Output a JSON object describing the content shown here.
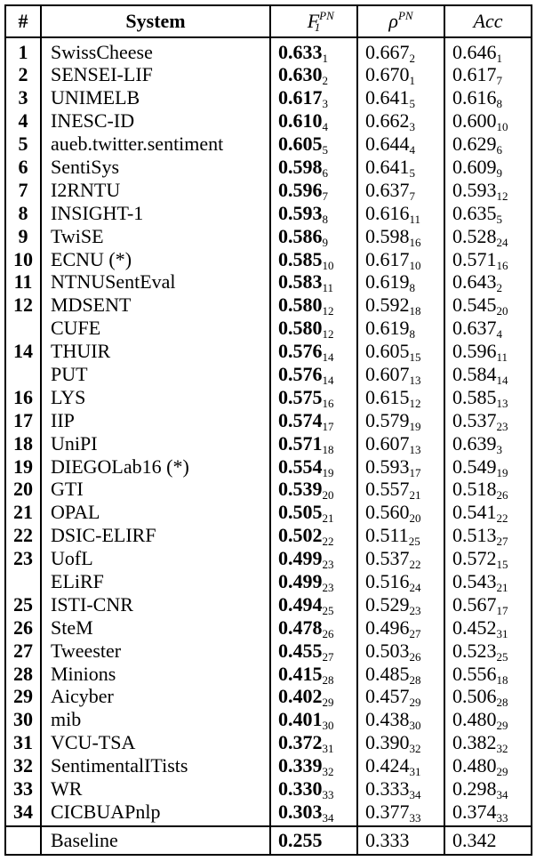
{
  "headers": {
    "rank": "#",
    "system": "System",
    "f1": {
      "base": "F",
      "sup": "PN",
      "sub": "1"
    },
    "rho": {
      "base": "ρ",
      "sup": "PN"
    },
    "acc": {
      "base": "Acc"
    }
  },
  "rows": [
    {
      "rank": "1",
      "system": "SwissCheese",
      "f1": "0.633",
      "f1_r": "1",
      "rho": "0.667",
      "rho_r": "2",
      "acc": "0.646",
      "acc_r": "1"
    },
    {
      "rank": "2",
      "system": "SENSEI-LIF",
      "f1": "0.630",
      "f1_r": "2",
      "rho": "0.670",
      "rho_r": "1",
      "acc": "0.617",
      "acc_r": "7"
    },
    {
      "rank": "3",
      "system": "UNIMELB",
      "f1": "0.617",
      "f1_r": "3",
      "rho": "0.641",
      "rho_r": "5",
      "acc": "0.616",
      "acc_r": "8"
    },
    {
      "rank": "4",
      "system": "INESC-ID",
      "f1": "0.610",
      "f1_r": "4",
      "rho": "0.662",
      "rho_r": "3",
      "acc": "0.600",
      "acc_r": "10"
    },
    {
      "rank": "5",
      "system": "aueb.twitter.sentiment",
      "f1": "0.605",
      "f1_r": "5",
      "rho": "0.644",
      "rho_r": "4",
      "acc": "0.629",
      "acc_r": "6"
    },
    {
      "rank": "6",
      "system": "SentiSys",
      "f1": "0.598",
      "f1_r": "6",
      "rho": "0.641",
      "rho_r": "5",
      "acc": "0.609",
      "acc_r": "9"
    },
    {
      "rank": "7",
      "system": "I2RNTU",
      "f1": "0.596",
      "f1_r": "7",
      "rho": "0.637",
      "rho_r": "7",
      "acc": "0.593",
      "acc_r": "12"
    },
    {
      "rank": "8",
      "system": "INSIGHT-1",
      "f1": "0.593",
      "f1_r": "8",
      "rho": "0.616",
      "rho_r": "11",
      "acc": "0.635",
      "acc_r": "5"
    },
    {
      "rank": "9",
      "system": "TwiSE",
      "f1": "0.586",
      "f1_r": "9",
      "rho": "0.598",
      "rho_r": "16",
      "acc": "0.528",
      "acc_r": "24"
    },
    {
      "rank": "10",
      "system": "ECNU (*)",
      "f1": "0.585",
      "f1_r": "10",
      "rho": "0.617",
      "rho_r": "10",
      "acc": "0.571",
      "acc_r": "16"
    },
    {
      "rank": "11",
      "system": "NTNUSentEval",
      "f1": "0.583",
      "f1_r": "11",
      "rho": "0.619",
      "rho_r": "8",
      "acc": "0.643",
      "acc_r": "2"
    },
    {
      "rank": "12",
      "system": "MDSENT",
      "f1": "0.580",
      "f1_r": "12",
      "rho": "0.592",
      "rho_r": "18",
      "acc": "0.545",
      "acc_r": "20"
    },
    {
      "rank": "",
      "system": "CUFE",
      "f1": "0.580",
      "f1_r": "12",
      "rho": "0.619",
      "rho_r": "8",
      "acc": "0.637",
      "acc_r": "4"
    },
    {
      "rank": "14",
      "system": "THUIR",
      "f1": "0.576",
      "f1_r": "14",
      "rho": "0.605",
      "rho_r": "15",
      "acc": "0.596",
      "acc_r": "11"
    },
    {
      "rank": "",
      "system": "PUT",
      "f1": "0.576",
      "f1_r": "14",
      "rho": "0.607",
      "rho_r": "13",
      "acc": "0.584",
      "acc_r": "14"
    },
    {
      "rank": "16",
      "system": "LYS",
      "f1": "0.575",
      "f1_r": "16",
      "rho": "0.615",
      "rho_r": "12",
      "acc": "0.585",
      "acc_r": "13"
    },
    {
      "rank": "17",
      "system": "IIP",
      "f1": "0.574",
      "f1_r": "17",
      "rho": "0.579",
      "rho_r": "19",
      "acc": "0.537",
      "acc_r": "23"
    },
    {
      "rank": "18",
      "system": "UniPI",
      "f1": "0.571",
      "f1_r": "18",
      "rho": "0.607",
      "rho_r": "13",
      "acc": "0.639",
      "acc_r": "3"
    },
    {
      "rank": "19",
      "system": "DIEGOLab16 (*)",
      "f1": "0.554",
      "f1_r": "19",
      "rho": "0.593",
      "rho_r": "17",
      "acc": "0.549",
      "acc_r": "19"
    },
    {
      "rank": "20",
      "system": "GTI",
      "f1": "0.539",
      "f1_r": "20",
      "rho": "0.557",
      "rho_r": "21",
      "acc": "0.518",
      "acc_r": "26"
    },
    {
      "rank": "21",
      "system": "OPAL",
      "f1": "0.505",
      "f1_r": "21",
      "rho": "0.560",
      "rho_r": "20",
      "acc": "0.541",
      "acc_r": "22"
    },
    {
      "rank": "22",
      "system": "DSIC-ELIRF",
      "f1": "0.502",
      "f1_r": "22",
      "rho": "0.511",
      "rho_r": "25",
      "acc": "0.513",
      "acc_r": "27"
    },
    {
      "rank": "23",
      "system": "UofL",
      "f1": "0.499",
      "f1_r": "23",
      "rho": "0.537",
      "rho_r": "22",
      "acc": "0.572",
      "acc_r": "15"
    },
    {
      "rank": "",
      "system": "ELiRF",
      "f1": "0.499",
      "f1_r": "23",
      "rho": "0.516",
      "rho_r": "24",
      "acc": "0.543",
      "acc_r": "21"
    },
    {
      "rank": "25",
      "system": "ISTI-CNR",
      "f1": "0.494",
      "f1_r": "25",
      "rho": "0.529",
      "rho_r": "23",
      "acc": "0.567",
      "acc_r": "17"
    },
    {
      "rank": "26",
      "system": "SteM",
      "f1": "0.478",
      "f1_r": "26",
      "rho": "0.496",
      "rho_r": "27",
      "acc": "0.452",
      "acc_r": "31"
    },
    {
      "rank": "27",
      "system": "Tweester",
      "f1": "0.455",
      "f1_r": "27",
      "rho": "0.503",
      "rho_r": "26",
      "acc": "0.523",
      "acc_r": "25"
    },
    {
      "rank": "28",
      "system": "Minions",
      "f1": "0.415",
      "f1_r": "28",
      "rho": "0.485",
      "rho_r": "28",
      "acc": "0.556",
      "acc_r": "18"
    },
    {
      "rank": "29",
      "system": "Aicyber",
      "f1": "0.402",
      "f1_r": "29",
      "rho": "0.457",
      "rho_r": "29",
      "acc": "0.506",
      "acc_r": "28"
    },
    {
      "rank": "30",
      "system": "mib",
      "f1": "0.401",
      "f1_r": "30",
      "rho": "0.438",
      "rho_r": "30",
      "acc": "0.480",
      "acc_r": "29"
    },
    {
      "rank": "31",
      "system": "VCU-TSA",
      "f1": "0.372",
      "f1_r": "31",
      "rho": "0.390",
      "rho_r": "32",
      "acc": "0.382",
      "acc_r": "32"
    },
    {
      "rank": "32",
      "system": "SentimentalITists",
      "f1": "0.339",
      "f1_r": "32",
      "rho": "0.424",
      "rho_r": "31",
      "acc": "0.480",
      "acc_r": "29"
    },
    {
      "rank": "33",
      "system": "WR",
      "f1": "0.330",
      "f1_r": "33",
      "rho": "0.333",
      "rho_r": "34",
      "acc": "0.298",
      "acc_r": "34"
    },
    {
      "rank": "34",
      "system": "CICBUAPnlp",
      "f1": "0.303",
      "f1_r": "34",
      "rho": "0.377",
      "rho_r": "33",
      "acc": "0.374",
      "acc_r": "33"
    }
  ],
  "baseline": {
    "rank": "",
    "system": "Baseline",
    "f1": "0.255",
    "rho": "0.333",
    "acc": "0.342"
  }
}
